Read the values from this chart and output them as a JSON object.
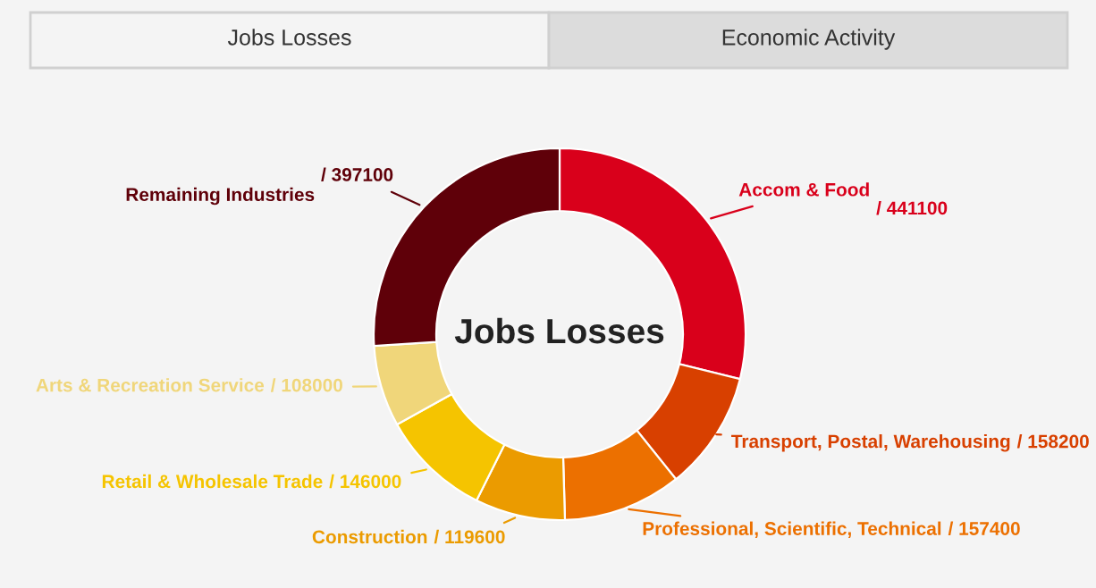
{
  "chart_data": {
    "type": "donut",
    "title": "Jobs Losses",
    "annotations": [
      "Jobs Losses",
      "Economic Activity"
    ],
    "categories": [
      "Accom & Food",
      "Transport, Postal, Warehousing",
      "Professional, Scientific, Technical",
      "Construction",
      "Retail & Wholesale Trade",
      "Arts & Recreation Service",
      "Remaining Industries"
    ],
    "values": [
      441100,
      158200,
      157400,
      119600,
      146000,
      108000,
      397100
    ],
    "colors": [
      "#d9001b",
      "#d84000",
      "#ec7000",
      "#eb9b00",
      "#f5c400",
      "#f0d67a",
      "#5f0009"
    ],
    "value_labels": [
      "/ 441100",
      "/ 158200",
      "/ 157400",
      "/ 119600",
      "/ 146000",
      "/ 108000",
      "/ 397100"
    ],
    "legend": false
  }
}
